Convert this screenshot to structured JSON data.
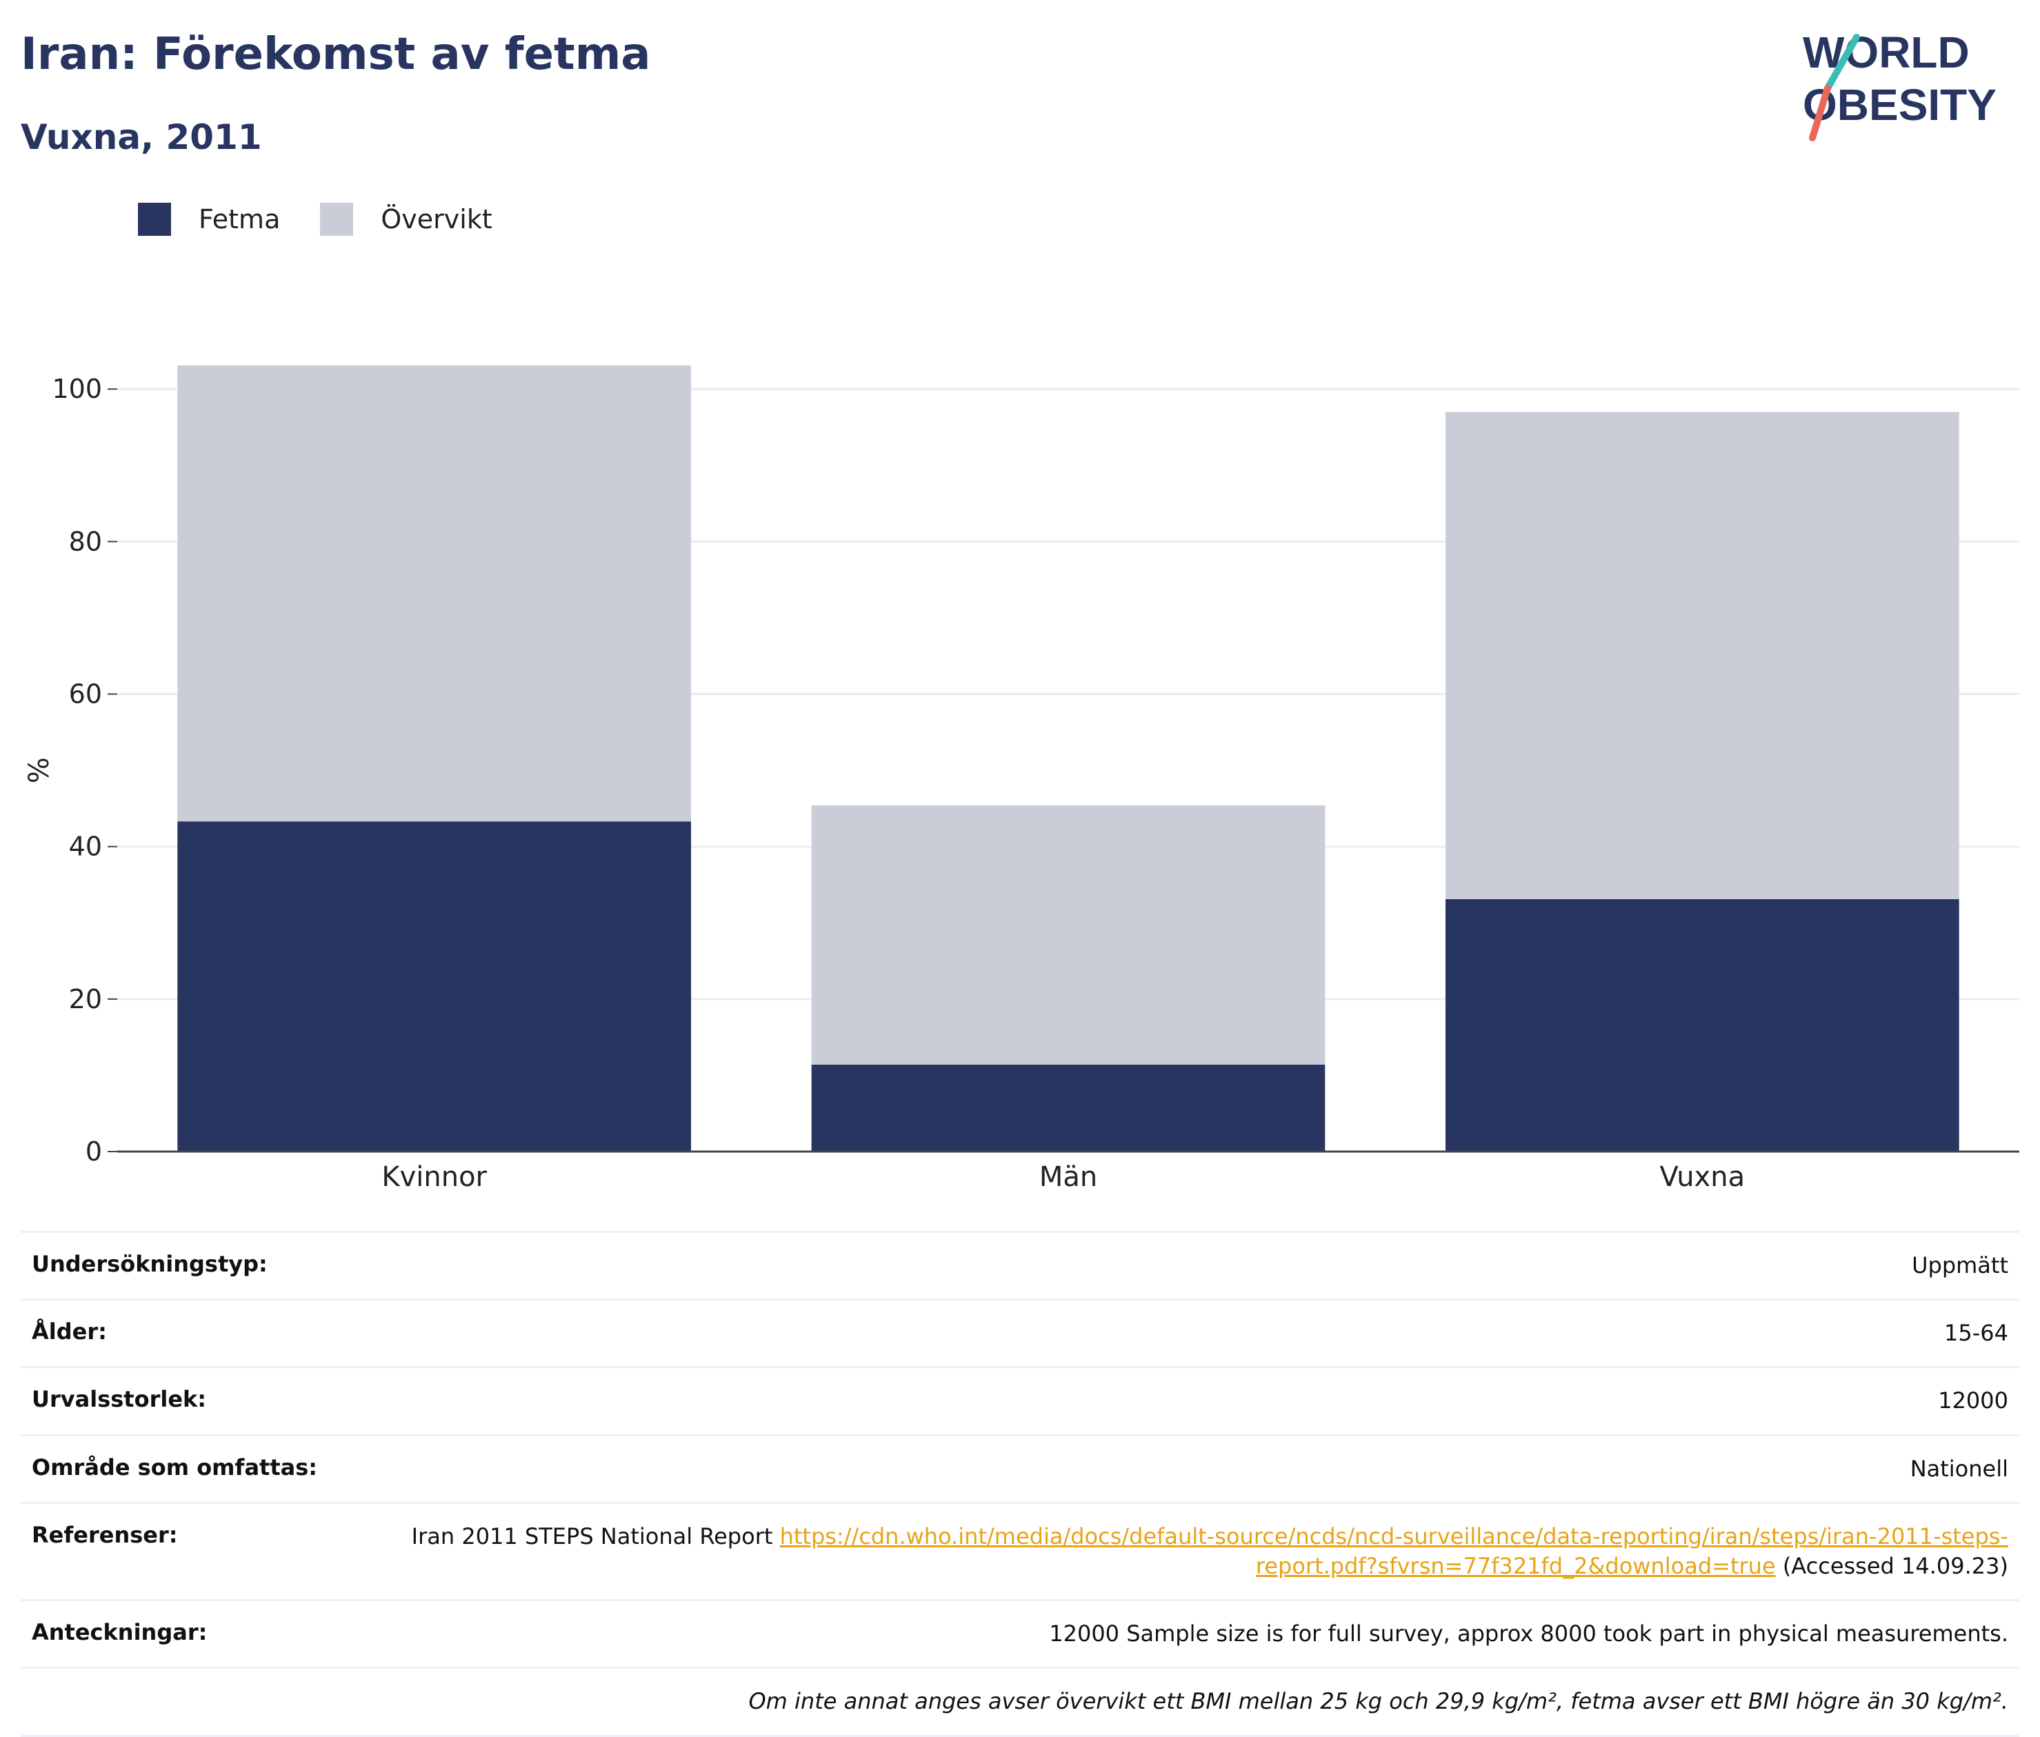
{
  "title": "Iran: Förekomst av fetma",
  "subtitle": "Vuxna, 2011",
  "logo": {
    "line1": "WORLD",
    "line2": "OBESITY"
  },
  "colors": {
    "title": "#283561",
    "fetma": "#283561",
    "overvikt": "#cacdd8",
    "link": "#e8a317",
    "grid": "#ebecf0"
  },
  "legend": [
    {
      "label": "Fetma",
      "color": "#283561"
    },
    {
      "label": "Övervikt",
      "color": "#cacdd8"
    }
  ],
  "chart_data": {
    "type": "bar",
    "stacked": true,
    "categories": [
      "Kvinnor",
      "Män",
      "Vuxna"
    ],
    "series": [
      {
        "name": "Fetma",
        "values": [
          43.3,
          11.4,
          33.1
        ]
      },
      {
        "name": "Övervikt",
        "values": [
          59.8,
          34.0,
          63.9
        ]
      }
    ],
    "ylabel": "%",
    "xlabel": "",
    "ylim": [
      0,
      104
    ],
    "yticks": [
      0,
      20,
      40,
      60,
      80,
      100
    ],
    "grid": true,
    "legend_position": "top-left"
  },
  "meta": {
    "rows": [
      {
        "label": "Undersökningstyp:",
        "value": "Uppmätt"
      },
      {
        "label": "Ålder:",
        "value": "15-64"
      },
      {
        "label": "Urvalsstorlek:",
        "value": "12000"
      },
      {
        "label": "Område som omfattas:",
        "value": "Nationell"
      }
    ],
    "references": {
      "label": "Referenser:",
      "text": "Iran 2011 STEPS National Report",
      "link": "https://cdn.who.int/media/docs/default-source/ncds/ncd-surveillance/data-reporting/iran/steps/iran-2011-steps-report.pdf?sfvrsn=77f321fd_2&download=true",
      "accessed": "(Accessed 14.09.23)"
    },
    "notes": {
      "label": "Anteckningar:",
      "value": "12000 Sample size is for full survey, approx 8000 took part in physical measurements."
    },
    "footnote": "Om inte annat anges avser övervikt ett BMI mellan 25 kg och 29,9 kg/m², fetma avser ett BMI högre än 30 kg/m²."
  }
}
